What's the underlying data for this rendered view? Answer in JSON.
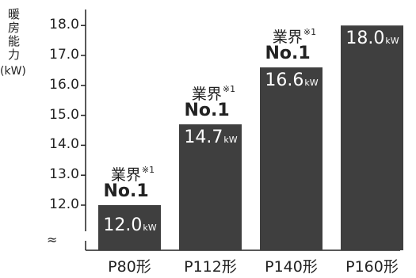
{
  "chart_data": {
    "type": "bar",
    "ylabel_chars": [
      "暖",
      "房",
      "能",
      "力"
    ],
    "yunit": "(kW)",
    "yticks": [
      "12.0",
      "13.0",
      "14.0",
      "15.0",
      "16.0",
      "17.0",
      "18.0"
    ],
    "ylim": [
      11.0,
      18.0
    ],
    "axis_break": true,
    "categories": [
      "P80形",
      "P112形",
      "P140形",
      "P160形"
    ],
    "values": [
      12.0,
      14.7,
      16.6,
      18.0
    ],
    "bar_labels": [
      {
        "value": "12.0",
        "unit": "kW"
      },
      {
        "value": "14.7",
        "unit": "kW"
      },
      {
        "value": "16.6",
        "unit": "kW"
      },
      {
        "value": "18.0",
        "unit": "kW"
      }
    ],
    "badges": [
      {
        "text": "業界",
        "note": "※1",
        "rank": "No.1"
      },
      {
        "text": "業界",
        "note": "※1",
        "rank": "No.1"
      },
      {
        "text": "業界",
        "note": "※1",
        "rank": "No.1"
      }
    ],
    "bar_color": "#3f3f3f",
    "axis_color": "#222222"
  }
}
